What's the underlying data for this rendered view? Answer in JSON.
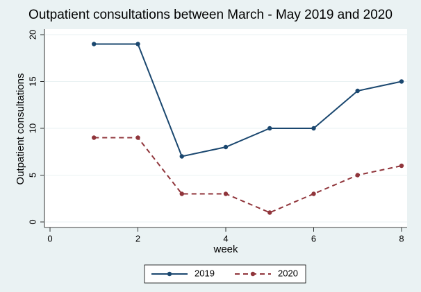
{
  "chart_data": {
    "type": "line",
    "title": "Outpatient consultations between March - May 2019 and 2020",
    "x_label": "week",
    "y_label": "Outpatient consultations",
    "x": [
      1,
      2,
      3,
      4,
      5,
      6,
      7,
      8
    ],
    "series": [
      {
        "name": "2019",
        "color": "#1a476f",
        "dashed": false,
        "values": [
          19,
          19,
          7,
          8,
          10,
          10,
          14,
          15
        ]
      },
      {
        "name": "2020",
        "color": "#90353b",
        "dashed": true,
        "values": [
          9,
          9,
          3,
          3,
          1,
          3,
          5,
          6
        ]
      }
    ],
    "xlim": [
      0,
      8
    ],
    "xticks": [
      0,
      2,
      4,
      6,
      8
    ],
    "ylim": [
      0,
      20
    ],
    "yticks": [
      0,
      5,
      10,
      15,
      20
    ],
    "grid": true,
    "legend": "bottom"
  }
}
